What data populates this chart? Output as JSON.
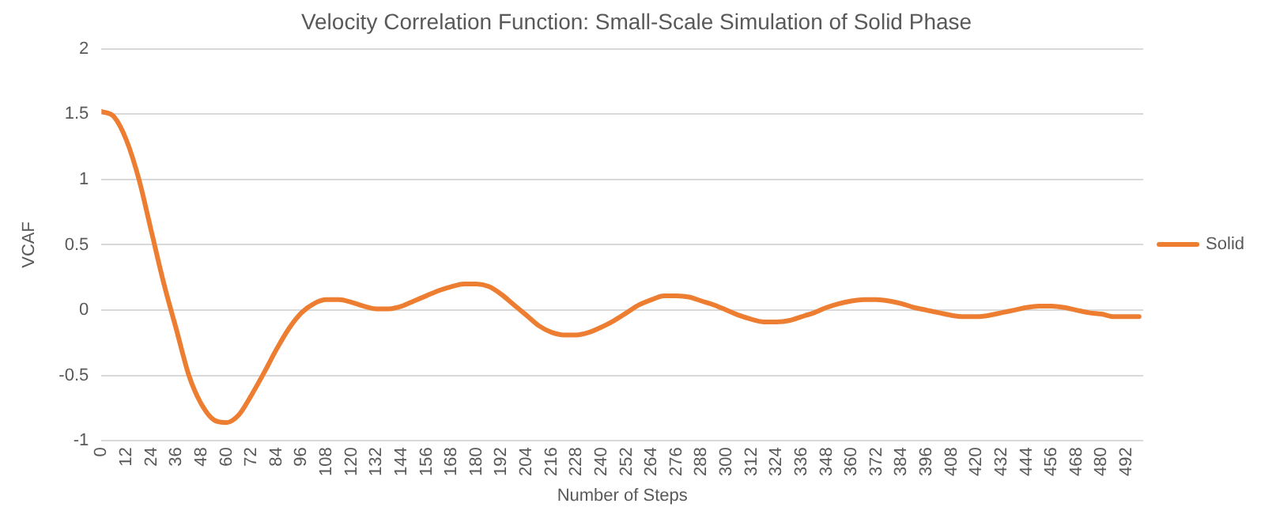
{
  "chart_data": {
    "type": "line",
    "title": "Velocity Correlation Function: Small-Scale Simulation of Solid Phase",
    "xlabel": "Number of Steps",
    "ylabel": "VCAF",
    "x": [
      0,
      6,
      12,
      18,
      24,
      30,
      36,
      42,
      48,
      54,
      60,
      66,
      72,
      78,
      84,
      90,
      96,
      102,
      108,
      114,
      120,
      126,
      132,
      138,
      144,
      150,
      156,
      162,
      168,
      174,
      180,
      186,
      192,
      198,
      204,
      210,
      216,
      222,
      228,
      234,
      240,
      246,
      252,
      258,
      264,
      270,
      276,
      282,
      288,
      294,
      300,
      306,
      312,
      318,
      324,
      330,
      336,
      342,
      348,
      354,
      360,
      366,
      372,
      378,
      384,
      390,
      396,
      402,
      408,
      414,
      420,
      426,
      432,
      438,
      444,
      450,
      456,
      462,
      468,
      474,
      480,
      486,
      492,
      498
    ],
    "series": [
      {
        "name": "Solid",
        "color": "#ed7d31",
        "values": [
          1.52,
          1.48,
          1.3,
          1.0,
          0.6,
          0.2,
          -0.15,
          -0.5,
          -0.72,
          -0.84,
          -0.86,
          -0.8,
          -0.65,
          -0.48,
          -0.3,
          -0.14,
          -0.02,
          0.05,
          0.08,
          0.08,
          0.06,
          0.03,
          0.01,
          0.01,
          0.03,
          0.07,
          0.11,
          0.15,
          0.18,
          0.2,
          0.2,
          0.18,
          0.12,
          0.04,
          -0.04,
          -0.12,
          -0.17,
          -0.19,
          -0.19,
          -0.17,
          -0.13,
          -0.08,
          -0.02,
          0.04,
          0.08,
          0.11,
          0.11,
          0.1,
          0.07,
          0.04,
          0.0,
          -0.04,
          -0.07,
          -0.09,
          -0.09,
          -0.08,
          -0.05,
          -0.02,
          0.02,
          0.05,
          0.07,
          0.08,
          0.08,
          0.07,
          0.05,
          0.02,
          0.0,
          -0.02,
          -0.04,
          -0.05,
          -0.05,
          -0.04,
          -0.02,
          0.0,
          0.02,
          0.03,
          0.03,
          0.02,
          0.0,
          -0.02,
          -0.03,
          -0.05,
          -0.05,
          -0.05
        ]
      }
    ],
    "xlim": [
      0,
      500
    ],
    "xticks": [
      0,
      12,
      24,
      36,
      48,
      60,
      72,
      84,
      96,
      108,
      120,
      132,
      144,
      156,
      168,
      180,
      192,
      204,
      216,
      228,
      240,
      252,
      264,
      276,
      288,
      300,
      312,
      324,
      336,
      348,
      360,
      372,
      384,
      396,
      408,
      420,
      432,
      444,
      456,
      468,
      480,
      492
    ],
    "ylim": [
      -1,
      2
    ],
    "yticks": [
      -1,
      -0.5,
      0,
      0.5,
      1,
      1.5,
      2
    ],
    "grid": "y",
    "legend": "right",
    "marker": "none",
    "line_style": "solid"
  }
}
